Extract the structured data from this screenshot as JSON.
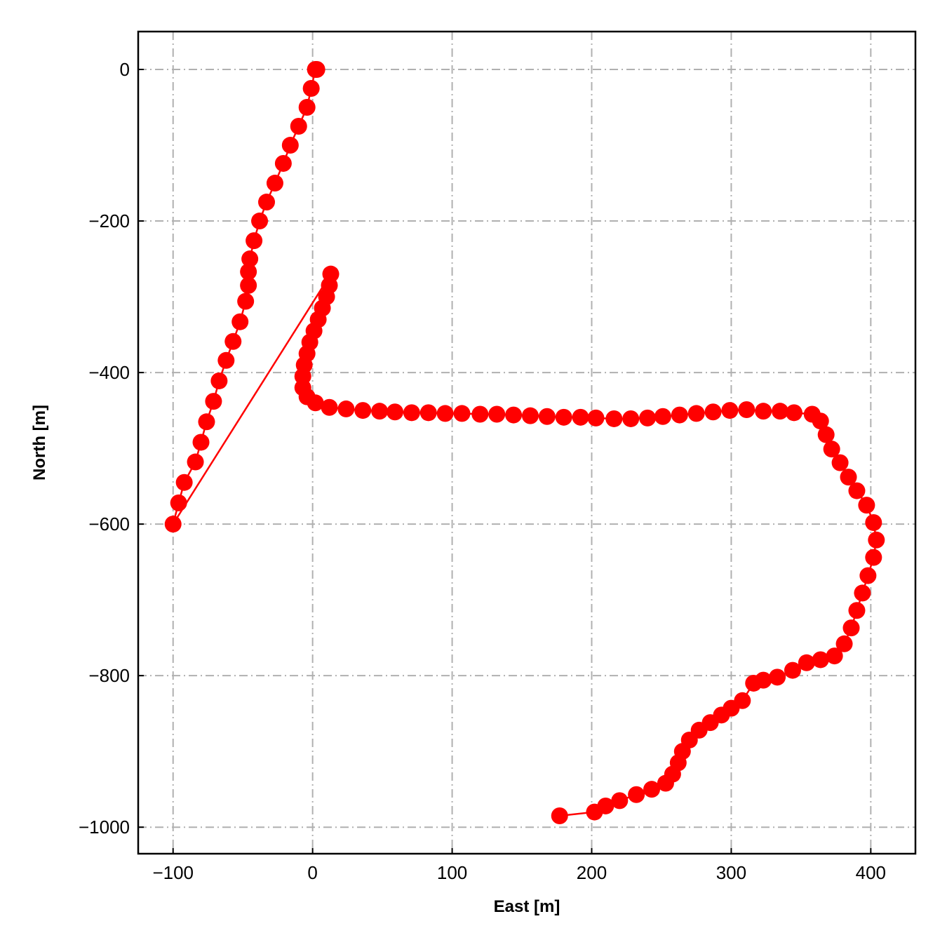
{
  "chart_data": {
    "type": "line",
    "xlabel": "East [m]",
    "ylabel": "North [m]",
    "x": [
      177,
      202,
      210,
      220,
      232,
      243,
      253,
      258,
      262,
      265,
      270,
      277,
      285,
      293,
      300,
      308,
      316,
      323,
      333,
      344,
      354,
      364,
      374,
      381,
      386,
      390,
      394,
      398,
      402,
      404,
      402,
      397,
      390,
      384,
      378,
      372,
      368,
      364,
      358,
      345,
      335,
      323,
      311,
      299,
      287,
      275,
      263,
      251,
      240,
      228,
      216,
      203,
      192,
      180,
      168,
      156,
      144,
      132,
      120,
      107,
      95,
      83,
      71,
      59,
      48,
      36,
      24,
      12,
      2,
      -4,
      -7,
      -7,
      -6,
      -4,
      -2,
      1,
      4,
      7,
      10,
      12,
      13,
      -100,
      -96,
      -92,
      -84,
      -80,
      -76,
      -71,
      -67,
      -62,
      -57,
      -52,
      -48,
      -46,
      -46,
      -45,
      -42,
      -38,
      -33,
      -27,
      -21,
      -16,
      -10,
      -4,
      -1,
      2,
      3
    ],
    "series": [
      {
        "color": "#ff0000",
        "values": [
          -985,
          -980,
          -972,
          -965,
          -957,
          -950,
          -942,
          -930,
          -915,
          -900,
          -885,
          -872,
          -862,
          -852,
          -843,
          -833,
          -810,
          -806,
          -802,
          -793,
          -783,
          -779,
          -774,
          -758,
          -737,
          -714,
          -691,
          -668,
          -644,
          -621,
          -598,
          -575,
          -556,
          -538,
          -519,
          -501,
          -482,
          -464,
          -455,
          -453,
          -451,
          -451,
          -449,
          -450,
          -452,
          -454,
          -456,
          -458,
          -460,
          -461,
          -461,
          -460,
          -459,
          -459,
          -458,
          -457,
          -456,
          -455,
          -455,
          -454,
          -454,
          -453,
          -453,
          -452,
          -451,
          -450,
          -448,
          -446,
          -440,
          -432,
          -420,
          -405,
          -390,
          -375,
          -360,
          -345,
          -330,
          -315,
          -300,
          -285,
          -270,
          -600,
          -572,
          -545,
          -518,
          -492,
          -465,
          -438,
          -411,
          -384,
          -359,
          -333,
          -306,
          -285,
          -267,
          -250,
          -226,
          -200,
          -175,
          -150,
          -124,
          -100,
          -75,
          -50,
          -25,
          0,
          0
        ]
      }
    ],
    "xlim": [
      -125,
      432
    ],
    "ylim": [
      -1035,
      50
    ],
    "xticks": [
      {
        "value": -100,
        "label": "−100"
      },
      0,
      100,
      200,
      300,
      400
    ],
    "yticks": [
      0,
      {
        "value": -200,
        "label": "−200"
      },
      {
        "value": -400,
        "label": "−400"
      },
      {
        "value": -600,
        "label": "−600"
      },
      {
        "value": -800,
        "label": "−800"
      },
      {
        "value": -1000,
        "label": "−1000"
      }
    ],
    "grid": true
  }
}
